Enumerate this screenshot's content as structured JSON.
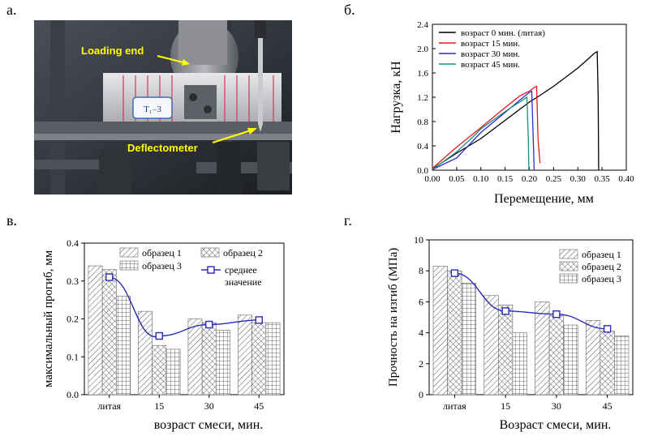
{
  "panels": {
    "a": {
      "label": "а."
    },
    "b": {
      "label": "б."
    },
    "c": {
      "label": "в."
    },
    "d": {
      "label": "г."
    }
  },
  "photo": {
    "loading_end_label": "Loading end",
    "deflectometer_label": "Deflectometer",
    "specimen_tag": "Т₁₋3"
  },
  "colors": {
    "cast": "#000000",
    "m15": "#e31a1c",
    "m30": "#2c2ccf",
    "m45": "#1a8f7a",
    "mean": "#2b2bb8"
  },
  "chart_data": [
    {
      "id": "load-displacement",
      "type": "line",
      "xlabel": "Перемещение, мм",
      "ylabel": "Нагрузка, кН",
      "xlim": [
        0,
        0.4
      ],
      "ylim": [
        0,
        2.4
      ],
      "xticks": [
        "0.00",
        "0.05",
        "0.10",
        "0.15",
        "0.20",
        "0.25",
        "0.30",
        "0.35",
        "0.40"
      ],
      "yticks": [
        "0.0",
        "0.4",
        "0.8",
        "1.2",
        "1.6",
        "2.0",
        "2.4"
      ],
      "legend_position": "top-right",
      "series": [
        {
          "name": "возраст 0 мин. (литая)",
          "color": "#000000",
          "x": [
            0.0,
            0.05,
            0.1,
            0.15,
            0.2,
            0.22,
            0.25,
            0.28,
            0.3,
            0.32,
            0.335,
            0.34,
            0.342,
            0.343
          ],
          "y": [
            0.02,
            0.28,
            0.52,
            0.82,
            1.12,
            1.22,
            1.38,
            1.56,
            1.68,
            1.82,
            1.93,
            1.95,
            1.2,
            0.0
          ]
        },
        {
          "name": "возраст 15 мин.",
          "color": "#e31a1c",
          "x": [
            0.0,
            0.05,
            0.1,
            0.15,
            0.18,
            0.2,
            0.21,
            0.215,
            0.218,
            0.222
          ],
          "y": [
            0.03,
            0.38,
            0.7,
            1.03,
            1.22,
            1.3,
            1.36,
            1.38,
            0.5,
            0.12
          ]
        },
        {
          "name": "возраст 30 мин.",
          "color": "#2c2ccf",
          "x": [
            0.0,
            0.05,
            0.1,
            0.15,
            0.18,
            0.2,
            0.205,
            0.21
          ],
          "y": [
            0.01,
            0.2,
            0.62,
            0.95,
            1.15,
            1.28,
            1.3,
            0.0
          ]
        },
        {
          "name": "возраст 45 мин.",
          "color": "#1a8f7a",
          "x": [
            0.0,
            0.05,
            0.08,
            0.1,
            0.13,
            0.16,
            0.18,
            0.195,
            0.198,
            0.199
          ],
          "y": [
            0.01,
            0.3,
            0.52,
            0.68,
            0.85,
            1.02,
            1.12,
            1.2,
            0.5,
            0.0
          ]
        }
      ]
    },
    {
      "id": "max-deflection",
      "type": "bar",
      "xlabel": "возраст смеси, мин.",
      "ylabel": "максимальный прогиб, мм",
      "ylim": [
        0,
        0.4
      ],
      "yticks": [
        "0.0",
        "0.1",
        "0.2",
        "0.3",
        "0.4"
      ],
      "categories": [
        "литая",
        "15",
        "30",
        "45"
      ],
      "series": [
        {
          "name": "образец 1",
          "values": [
            0.34,
            0.22,
            0.2,
            0.21
          ]
        },
        {
          "name": "образец 2",
          "values": [
            0.33,
            0.13,
            0.19,
            0.19
          ]
        },
        {
          "name": "образец 3",
          "values": [
            0.26,
            0.12,
            0.17,
            0.19
          ]
        }
      ],
      "mean": {
        "name": "среднее значение",
        "values": [
          0.31,
          0.155,
          0.185,
          0.197
        ]
      },
      "legend_position": "top-right"
    },
    {
      "id": "flexural-strength",
      "type": "bar",
      "xlabel": "Возраст смеси, мин.",
      "ylabel": "Прочность на изгиб (МПа)",
      "ylim": [
        0,
        10
      ],
      "yticks": [
        "0",
        "2",
        "4",
        "6",
        "8",
        "10"
      ],
      "categories": [
        "литая",
        "15",
        "30",
        "45"
      ],
      "series": [
        {
          "name": "образец 1",
          "values": [
            8.3,
            6.4,
            6.0,
            4.8
          ]
        },
        {
          "name": "образец 2",
          "values": [
            8.0,
            5.8,
            5.1,
            4.1
          ]
        },
        {
          "name": "образец 3",
          "values": [
            7.2,
            4.0,
            4.5,
            3.8
          ]
        }
      ],
      "mean": {
        "values": [
          7.85,
          5.4,
          5.2,
          4.25
        ]
      },
      "legend_position": "top-right"
    }
  ]
}
